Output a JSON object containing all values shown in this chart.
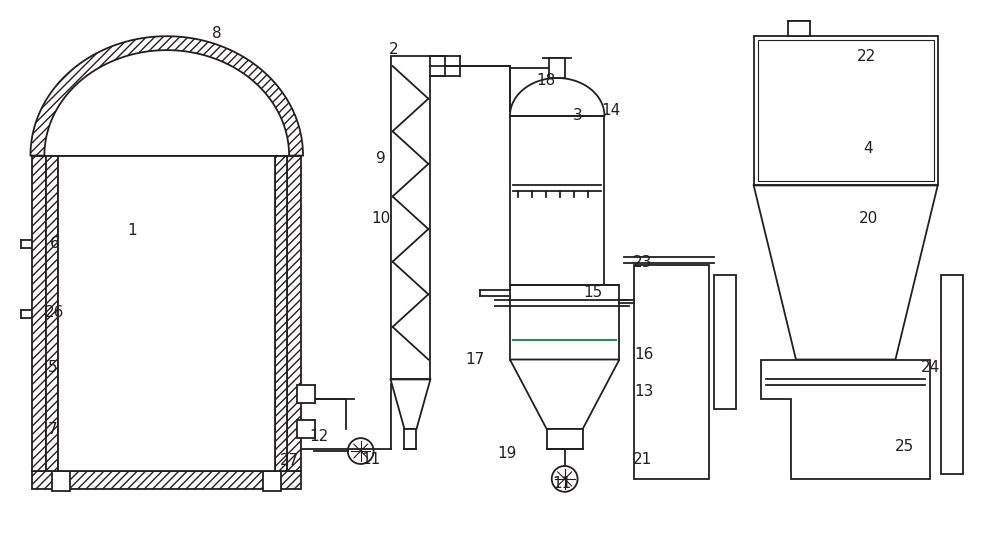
{
  "bg_color": "#ffffff",
  "line_color": "#231f20",
  "fig_width": 10.0,
  "fig_height": 5.35,
  "label_fs": 11
}
